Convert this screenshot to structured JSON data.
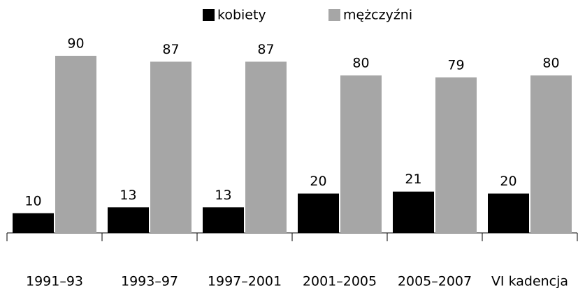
{
  "chart_data": {
    "type": "bar",
    "categories": [
      "1991–93",
      "1993–97",
      "1997–2001",
      "2001–2005",
      "2005–2007",
      "VI kadencja"
    ],
    "series": [
      {
        "name": "kobiety",
        "color": "#000000",
        "values": [
          10,
          13,
          13,
          20,
          21,
          20
        ]
      },
      {
        "name": "mężczyźni",
        "color": "#a6a6a6",
        "values": [
          90,
          87,
          87,
          80,
          79,
          80
        ]
      }
    ],
    "legend": "top"
  }
}
